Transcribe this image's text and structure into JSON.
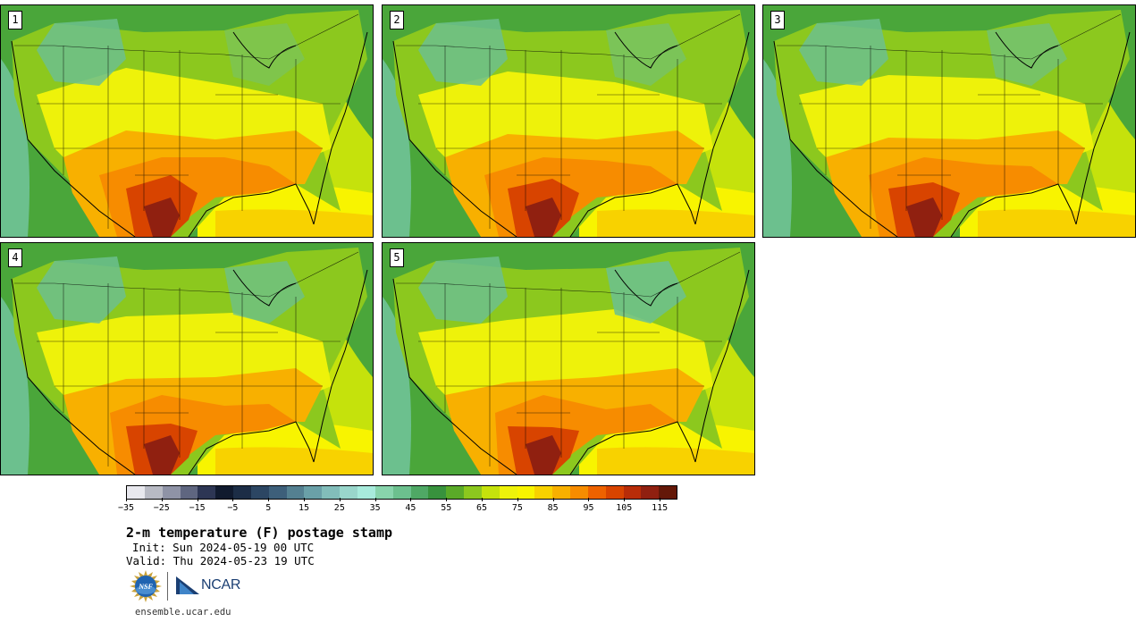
{
  "panels": [
    {
      "label": "1"
    },
    {
      "label": "2"
    },
    {
      "label": "3"
    },
    {
      "label": "4"
    },
    {
      "label": "5"
    }
  ],
  "colorbar": {
    "colors": [
      "#e8e8ee",
      "#b8bac4",
      "#8f93a6",
      "#5f6680",
      "#2d3654",
      "#101a2e",
      "#1c2d46",
      "#2c4663",
      "#3d5f7a",
      "#548091",
      "#6aa0a8",
      "#82bdba",
      "#99d6cb",
      "#a8ebdc",
      "#88d4ac",
      "#6cc08e",
      "#4fa865",
      "#38923d",
      "#5aaa28",
      "#8cc81e",
      "#c5e20c",
      "#eef20a",
      "#f8f400",
      "#f8d200",
      "#f8b000",
      "#f78c00",
      "#ee6200",
      "#d84400",
      "#b82c08",
      "#902010",
      "#641808"
    ],
    "tick_labels": [
      "−35",
      "−25",
      "−15",
      "−5",
      "5",
      "15",
      "25",
      "35",
      "45",
      "55",
      "65",
      "75",
      "85",
      "95",
      "105",
      "115"
    ]
  },
  "title": "2-m temperature (F) postage stamp",
  "init": "Init: Sun 2024-05-19 00 UTC",
  "valid": "Valid: Thu 2024-05-23 19 UTC",
  "logos": {
    "nsf_text": "NSF",
    "ncar_text": "NCAR"
  },
  "url": "ensemble.ucar.edu"
}
